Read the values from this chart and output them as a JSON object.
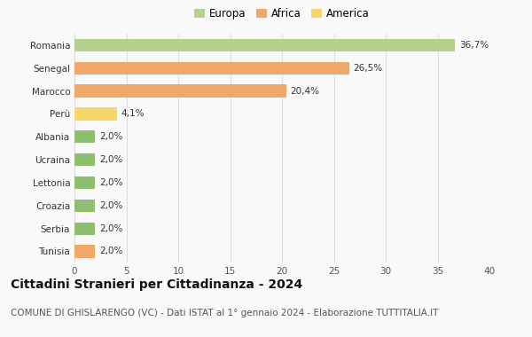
{
  "categories": [
    "Tunisia",
    "Serbia",
    "Croazia",
    "Lettonia",
    "Ucraina",
    "Albania",
    "Perù",
    "Marocco",
    "Senegal",
    "Romania"
  ],
  "values": [
    2.0,
    2.0,
    2.0,
    2.0,
    2.0,
    2.0,
    4.1,
    20.4,
    26.5,
    36.7
  ],
  "labels": [
    "2,0%",
    "2,0%",
    "2,0%",
    "2,0%",
    "2,0%",
    "2,0%",
    "4,1%",
    "20,4%",
    "26,5%",
    "36,7%"
  ],
  "colors": [
    "#f0a868",
    "#8fbe6e",
    "#8fbe6e",
    "#8fbe6e",
    "#8fbe6e",
    "#8fbe6e",
    "#f5d76e",
    "#f0a868",
    "#f0a868",
    "#b5d18e"
  ],
  "legend_labels": [
    "Europa",
    "Africa",
    "America"
  ],
  "legend_colors": [
    "#b5d18e",
    "#f0a868",
    "#f5d76e"
  ],
  "xlim": [
    0,
    40
  ],
  "xticks": [
    0,
    5,
    10,
    15,
    20,
    25,
    30,
    35,
    40
  ],
  "title": "Cittadini Stranieri per Cittadinanza - 2024",
  "subtitle": "COMUNE DI GHISLARENGO (VC) - Dati ISTAT al 1° gennaio 2024 - Elaborazione TUTTITALIA.IT",
  "bg_color": "#f9f9f9",
  "grid_color": "#dddddd",
  "bar_height": 0.55,
  "title_fontsize": 10,
  "subtitle_fontsize": 7.5,
  "label_fontsize": 7.5,
  "tick_fontsize": 7.5,
  "legend_fontsize": 8.5
}
